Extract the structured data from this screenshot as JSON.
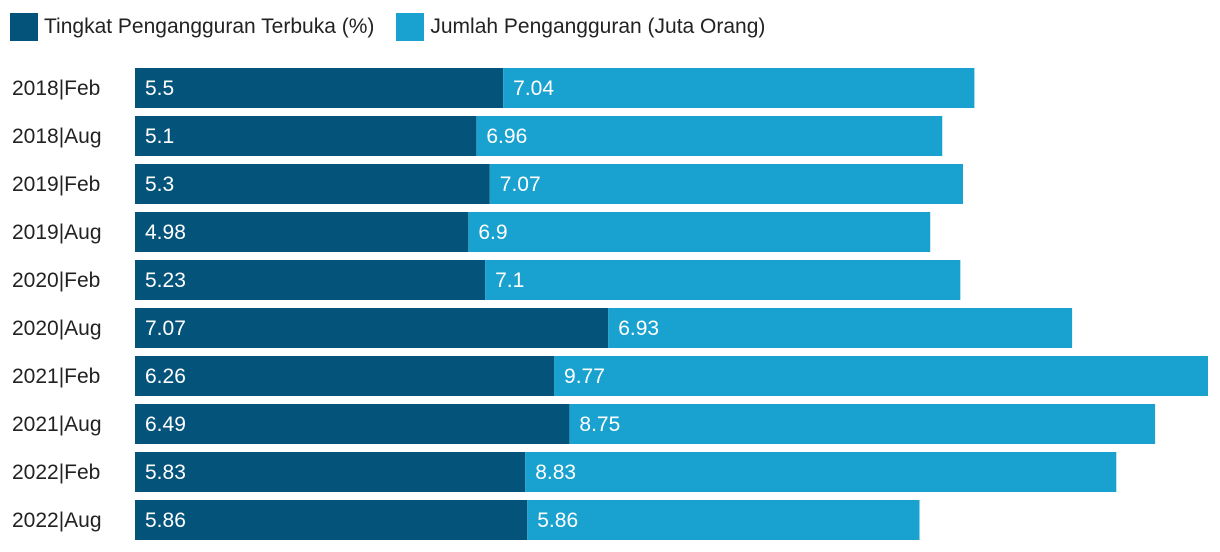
{
  "chart_data": {
    "type": "bar",
    "orientation": "horizontal",
    "stacked": true,
    "legend_position": "top-left",
    "grid": false,
    "categories": [
      "2018|Feb",
      "2018|Aug",
      "2019|Feb",
      "2019|Aug",
      "2020|Feb",
      "2020|Aug",
      "2021|Feb",
      "2021|Aug",
      "2022|Feb",
      "2022|Aug"
    ],
    "series": [
      {
        "name": "Tingkat Pengangguran Terbuka (%)",
        "color": "#04537b",
        "values": [
          5.5,
          5.1,
          5.3,
          4.98,
          5.23,
          7.07,
          6.26,
          6.49,
          5.83,
          5.86
        ]
      },
      {
        "name": "Jumlah Pengangguran (Juta Orang)",
        "color": "#19a2d0",
        "values": [
          7.04,
          6.96,
          7.07,
          6.9,
          7.1,
          6.93,
          9.77,
          8.75,
          8.83,
          5.86
        ]
      }
    ],
    "title": "",
    "xlabel": "",
    "ylabel": "",
    "xlim": [
      0,
      16.03
    ]
  }
}
